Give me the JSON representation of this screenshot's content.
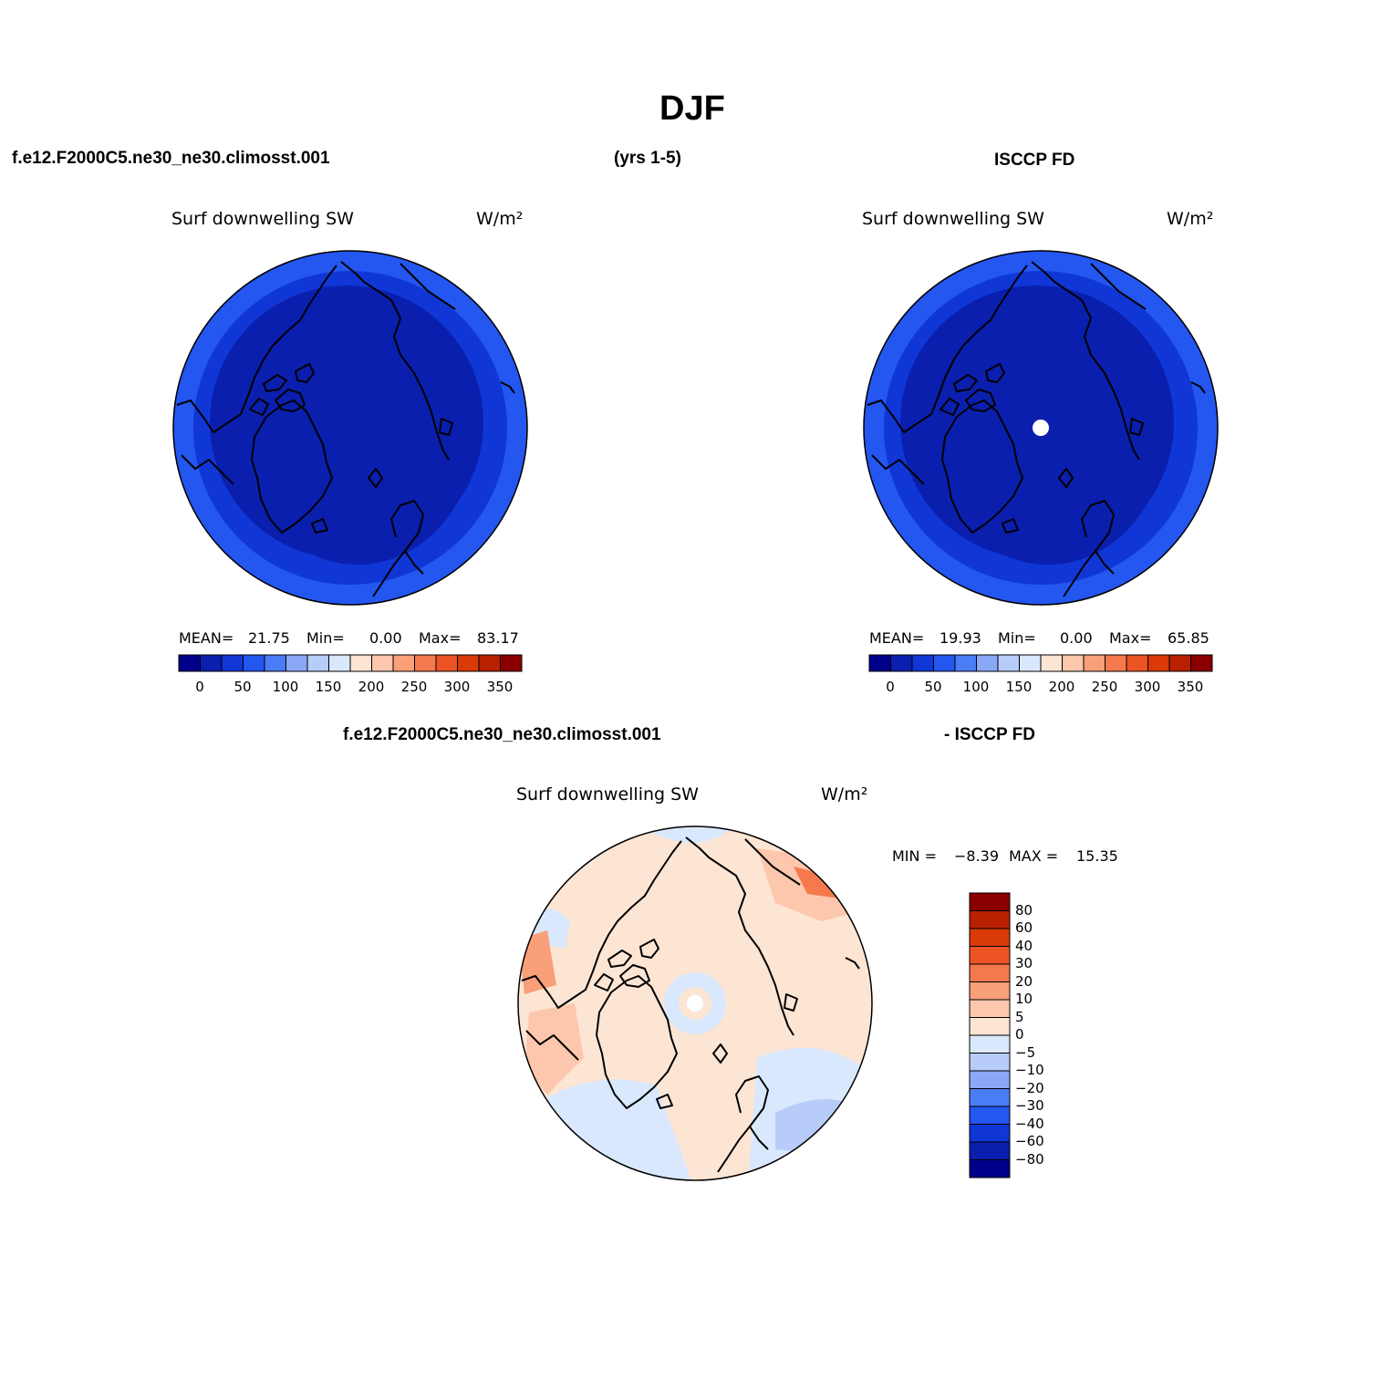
{
  "title": "DJF",
  "header": {
    "case": "f.e12.F2000C5.ne30_ne30.climosst.001",
    "years": "(yrs 1-5)",
    "obs": "ISCCP FD",
    "diff_case": "f.e12.F2000C5.ne30_ne30.climosst.001",
    "diff_obs": "- ISCCP FD"
  },
  "colors": {
    "abs_scale": [
      "#00008a",
      "#0a1fae",
      "#1037d6",
      "#2456f0",
      "#4a7cf5",
      "#8aa8f6",
      "#b7ccf8",
      "#d9e8fc",
      "#fde5d4",
      "#fcc7ad",
      "#f9a07a",
      "#f47a4e",
      "#ec5424",
      "#d93a08",
      "#b82000",
      "#8a0000"
    ],
    "diff_scale": [
      "#8a0000",
      "#b82000",
      "#d93a08",
      "#ec5424",
      "#f47a4e",
      "#f9a07a",
      "#fcc7ad",
      "#fde5d4",
      "#d9e8fc",
      "#b7ccf8",
      "#8aa8f6",
      "#4a7cf5",
      "#2456f0",
      "#1037d6",
      "#0a1fae",
      "#00008a"
    ]
  },
  "chart_data": [
    {
      "type": "heatmap",
      "projection": "north polar stereographic",
      "panel": "model",
      "variable": "Surf downwelling SW",
      "units": "W/m²",
      "mean_label": "MEAN=",
      "mean": "21.75",
      "min_label": "Min=",
      "min": "0.00",
      "max_label": "Max=",
      "max": "83.17",
      "colorbar_ticks": [
        "0",
        "50",
        "100",
        "150",
        "200",
        "250",
        "300",
        "350"
      ],
      "levels": [
        0,
        25,
        50,
        75,
        100,
        125,
        150,
        175,
        200,
        225,
        250,
        275,
        300,
        325,
        350
      ]
    },
    {
      "type": "heatmap",
      "projection": "north polar stereographic",
      "panel": "obs",
      "variable": "Surf downwelling SW",
      "units": "W/m²",
      "mean_label": "MEAN=",
      "mean": "19.93",
      "min_label": "Min=",
      "min": "0.00",
      "max_label": "Max=",
      "max": "65.85",
      "colorbar_ticks": [
        "0",
        "50",
        "100",
        "150",
        "200",
        "250",
        "300",
        "350"
      ],
      "levels": [
        0,
        25,
        50,
        75,
        100,
        125,
        150,
        175,
        200,
        225,
        250,
        275,
        300,
        325,
        350
      ]
    },
    {
      "type": "heatmap",
      "projection": "north polar stereographic",
      "panel": "difference",
      "variable": "Surf downwelling SW",
      "units": "W/m²",
      "min_label": "MIN =",
      "min": "−8.39",
      "max_label": "MAX =",
      "max": "15.35",
      "colorbar_ticks": [
        "80",
        "60",
        "40",
        "30",
        "20",
        "10",
        "5",
        "0",
        "−5",
        "−10",
        "−20",
        "−30",
        "−40",
        "−60",
        "−80"
      ],
      "levels": [
        80,
        60,
        40,
        30,
        20,
        10,
        5,
        0,
        -5,
        -10,
        -20,
        -30,
        -40,
        -60,
        -80
      ]
    }
  ]
}
